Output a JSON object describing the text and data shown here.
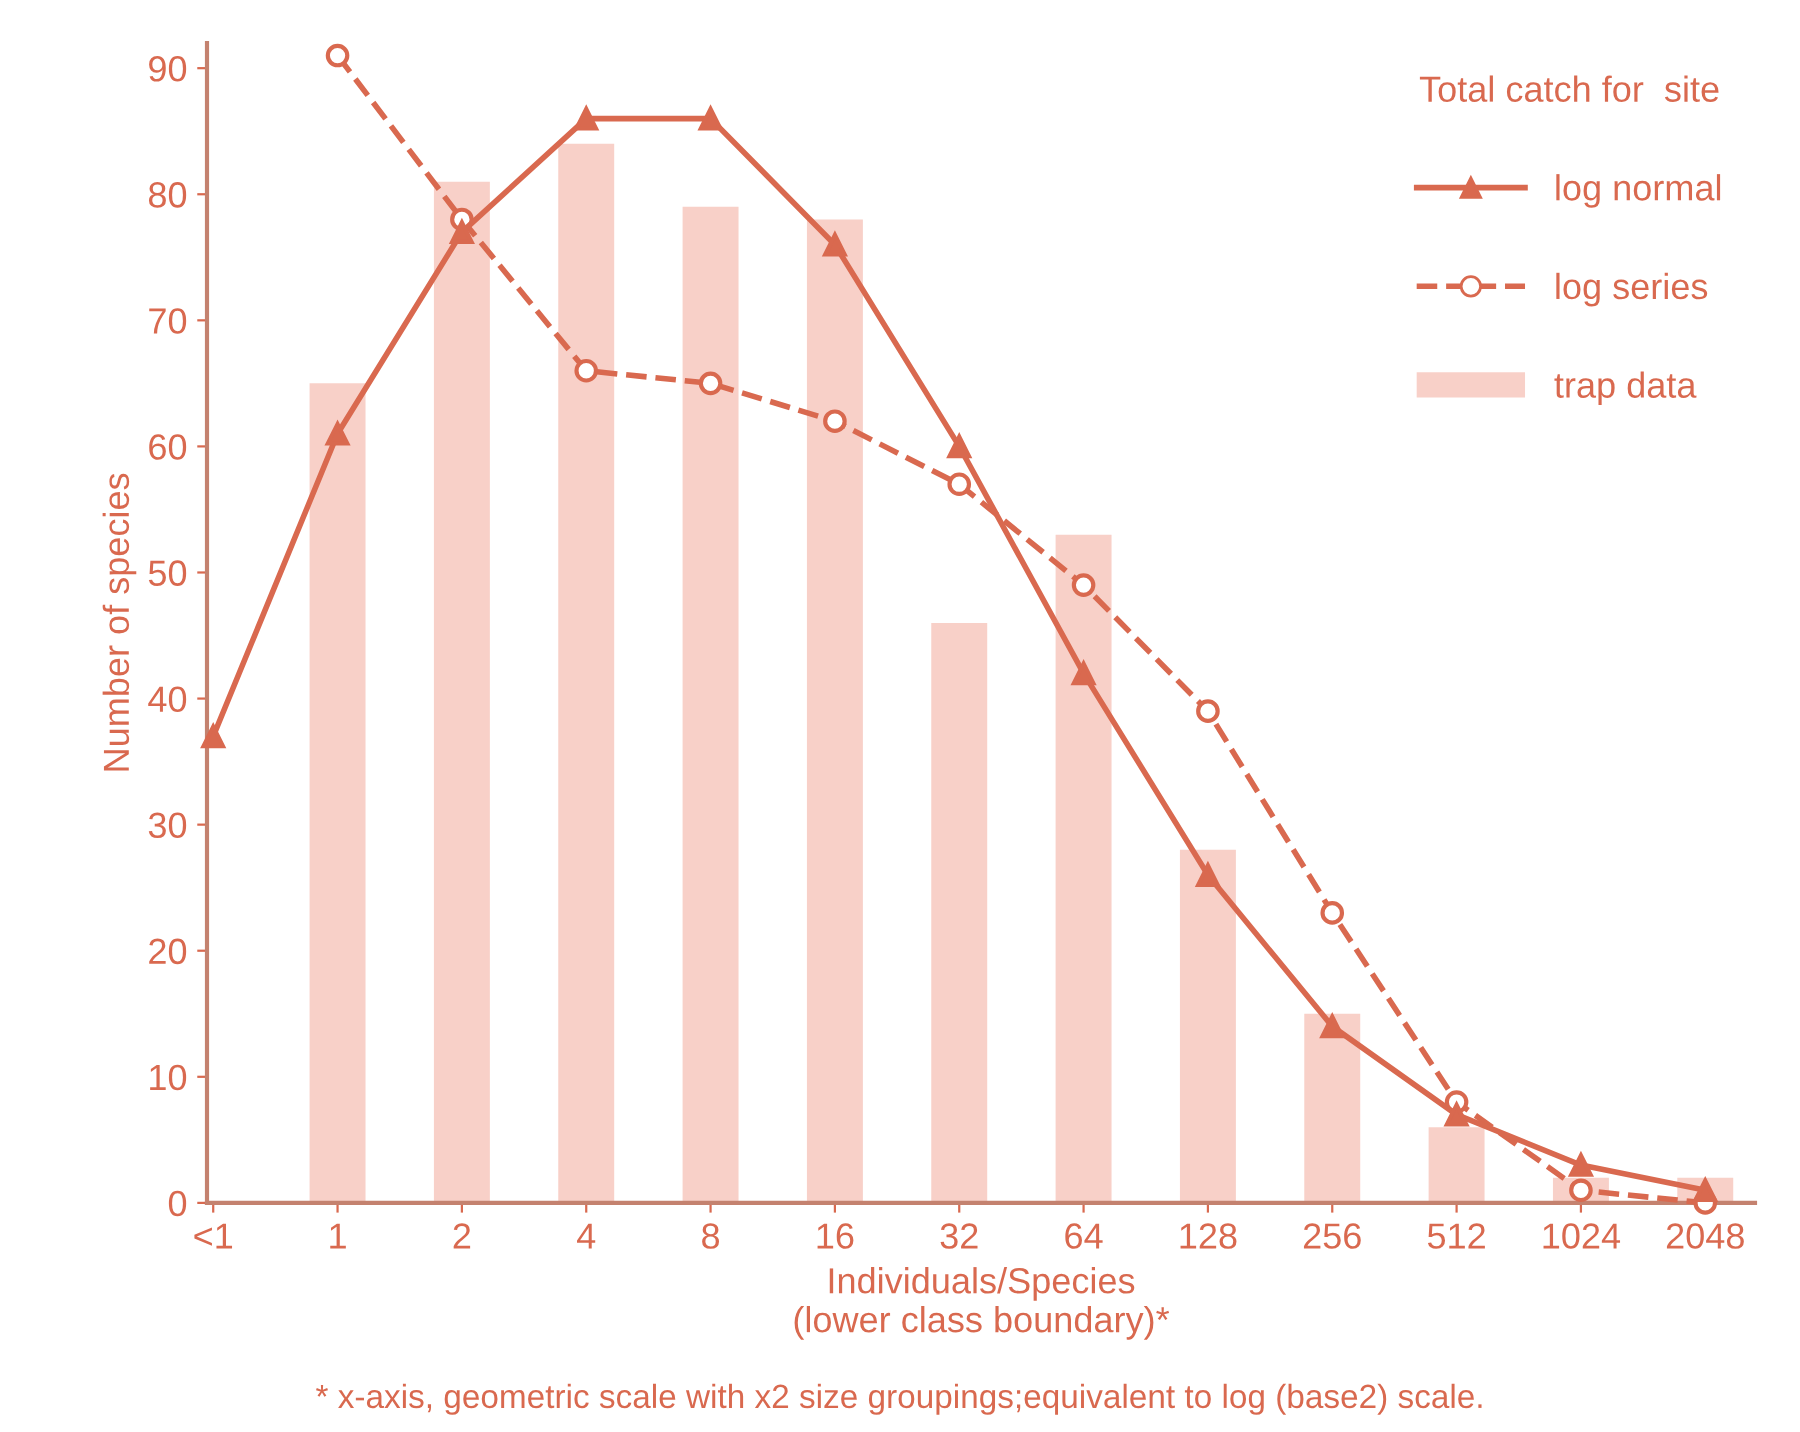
{
  "chart_data": {
    "type": "bar",
    "categories": [
      "<1",
      "1",
      "2",
      "4",
      "8",
      "16",
      "32",
      "64",
      "128",
      "256",
      "512",
      "1024",
      "2048"
    ],
    "series": [
      {
        "name": "trap data",
        "color": "#f8d0c8",
        "values": [
          null,
          65,
          81,
          84,
          79,
          78,
          46,
          53,
          28,
          15,
          6,
          2,
          2
        ]
      },
      {
        "name": "log normal",
        "type": "line",
        "color": "#d9694f",
        "marker": "triangle",
        "line_style": "solid",
        "values": [
          37,
          61,
          77,
          86,
          86,
          76,
          60,
          42,
          26,
          14,
          7,
          3,
          1
        ]
      },
      {
        "name": "log series",
        "type": "line",
        "color": "#d9694f",
        "marker": "circle",
        "line_style": "dashed",
        "values": [
          null,
          91,
          78,
          66,
          65,
          62,
          57,
          49,
          39,
          23,
          8,
          1,
          0
        ]
      }
    ],
    "xlabel": "Individuals/Species\n(lower class boundary)*",
    "ylabel": "Number of species",
    "legend_title": "Total catch for  site",
    "legend": "top right",
    "ylim": [
      0,
      92
    ],
    "yticks": [
      0,
      10,
      20,
      30,
      40,
      50,
      60,
      70,
      80,
      90
    ],
    "grid": false,
    "annotations": [
      "* x-axis, geometric scale with x2 size groupings;equivalent to log (base2) scale."
    ]
  }
}
